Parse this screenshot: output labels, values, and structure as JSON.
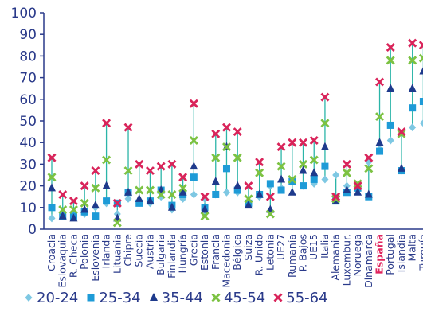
{
  "chart_data": {
    "type": "scatter",
    "title": "",
    "xlabel": "",
    "ylabel": "",
    "ylim": [
      0,
      100
    ],
    "yticks": [
      0,
      10,
      20,
      30,
      40,
      50,
      60,
      70,
      80,
      90,
      100
    ],
    "categories": [
      "Croacia",
      "Eslovaquia",
      "R. Checa",
      "Polonia",
      "Eslovenia",
      "Irlanda",
      "Lituania",
      "Chipre",
      "Suecia",
      "Austria",
      "Bulgaria",
      "Finlandia",
      "Hungría",
      "Grecia",
      "Estonia",
      "Francia",
      "Macedonia",
      "Bélgica",
      "Suiza",
      "R. Unido",
      "Letonia",
      "UE27",
      "Rumanía",
      "P. Bajos",
      "UE15",
      "Italia",
      "Alemania",
      "Luxembur.",
      "Noruega",
      "Dinamarca",
      "España",
      "Portugal",
      "Islandia",
      "Malta",
      "Turquía"
    ],
    "highlight_category": "España",
    "series": [
      {
        "name": "20-24",
        "color": "#7ec8e3",
        "marker": "diamond",
        "values": [
          5,
          6,
          6,
          7,
          10,
          12,
          7,
          14,
          12,
          12,
          15,
          9,
          14,
          16,
          14,
          16,
          17,
          17,
          12,
          15,
          20,
          19,
          22,
          20,
          21,
          23,
          25,
          20,
          18,
          31,
          37,
          41,
          27,
          47,
          49
        ]
      },
      {
        "name": "25-34",
        "color": "#1e9bd7",
        "marker": "square",
        "values": [
          10,
          6,
          6,
          8,
          6,
          13,
          12,
          17,
          12,
          13,
          18,
          11,
          16,
          24,
          10,
          16,
          28,
          18,
          12,
          16,
          21,
          18,
          22,
          20,
          23,
          29,
          13,
          17,
          19,
          15,
          36,
          48,
          27,
          56,
          59
        ]
      },
      {
        "name": "35-44",
        "color": "#1e3a8c",
        "marker": "triangle",
        "values": [
          19,
          6,
          5,
          9,
          11,
          20,
          5,
          17,
          14,
          13,
          18,
          10,
          17,
          29,
          9,
          22,
          38,
          20,
          11,
          16,
          9,
          23,
          17,
          27,
          26,
          38,
          13,
          18,
          17,
          16,
          40,
          65,
          28,
          65,
          73
        ]
      },
      {
        "name": "45-54",
        "color": "#7cc242",
        "marker": "x",
        "values": [
          24,
          9,
          9,
          12,
          19,
          32,
          3,
          27,
          18,
          18,
          16,
          16,
          19,
          41,
          6,
          33,
          38,
          33,
          14,
          26,
          7,
          29,
          23,
          30,
          32,
          49,
          14,
          26,
          21,
          28,
          52,
          78,
          44,
          78,
          79
        ]
      },
      {
        "name": "55-64",
        "color": "#d9245a",
        "marker": "x",
        "values": [
          33,
          16,
          13,
          20,
          27,
          49,
          12,
          47,
          30,
          27,
          29,
          30,
          24,
          58,
          15,
          44,
          47,
          45,
          20,
          31,
          15,
          38,
          40,
          40,
          41,
          61,
          15,
          30,
          20,
          33,
          68,
          84,
          45,
          86,
          85
        ]
      }
    ],
    "stem_color": "#2bb5a8",
    "grid": false,
    "legend_position": "bottom"
  }
}
